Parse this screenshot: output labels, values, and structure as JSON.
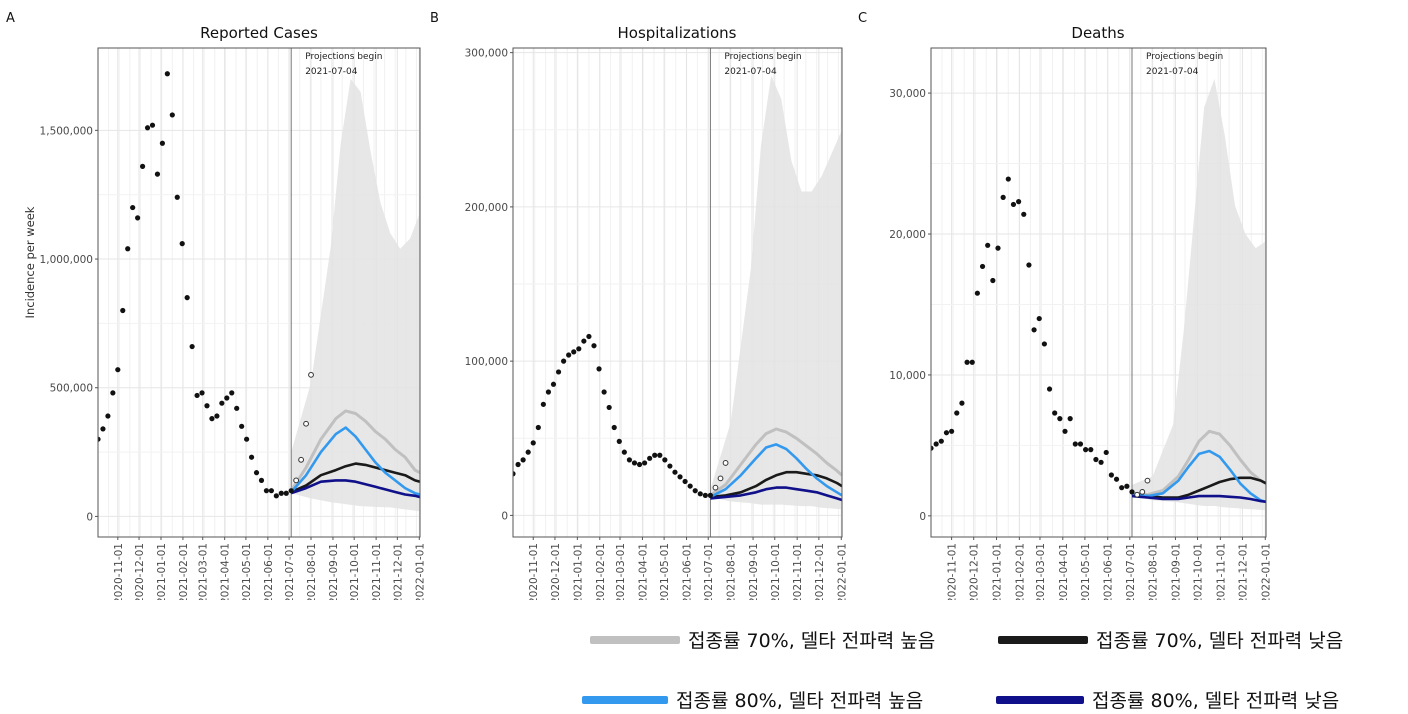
{
  "panels": [
    {
      "letter": "A",
      "title": "Reported Cases",
      "ylabel": "Incidence per week",
      "yticks": [
        0,
        500000,
        1000000,
        1500000
      ],
      "ytick_labels": [
        "0",
        "500,000",
        "1,000,000",
        "1,500,000"
      ],
      "ylim": [
        -80000,
        1820000
      ],
      "annotation": [
        "Projections begin",
        "2021-07-04"
      ]
    },
    {
      "letter": "B",
      "title": "Hospitalizations",
      "ylabel": "",
      "yticks": [
        0,
        100000,
        200000,
        300000
      ],
      "ytick_labels": [
        "0",
        "100,000",
        "200,000",
        "300,000"
      ],
      "ylim": [
        -14000,
        303000
      ],
      "annotation": [
        "Projections begin",
        "2021-07-04"
      ]
    },
    {
      "letter": "C",
      "title": "Deaths",
      "ylabel": "",
      "yticks": [
        0,
        10000,
        20000,
        30000
      ],
      "ytick_labels": [
        "0",
        "10,000",
        "20,000",
        "30,000"
      ],
      "ylim": [
        -1500,
        33200
      ],
      "annotation": [
        "Projections begin",
        "2021-07-04"
      ]
    }
  ],
  "x_tick_labels": [
    "2020-11-01",
    "2020-12-01",
    "2021-01-01",
    "2021-02-01",
    "2021-03-01",
    "2021-04-01",
    "2021-05-01",
    "2021-06-01",
    "2021-07-01",
    "2021-08-01",
    "2021-09-01",
    "2021-10-01",
    "2021-11-01",
    "2021-12-01",
    "2022-01-01"
  ],
  "legend": [
    {
      "label": "접종률 70%, 델타 전파력 높음",
      "color": "#c0c0c0"
    },
    {
      "label": "접종률 70%, 델타 전파력 낮음",
      "color": "#1a1a1a"
    },
    {
      "label": "접종률 80%, 델타 전파력 높음",
      "color": "#3399ee"
    },
    {
      "label": "접종률 80%, 델타 전파력 낮음",
      "color": "#10108a"
    }
  ],
  "chart_data": [
    {
      "type": "scatter",
      "title": "Reported Cases",
      "ylabel": "Incidence per week",
      "x_range": [
        "2020-10-04",
        "2022-01-02"
      ],
      "ylim": [
        -80000,
        1820000
      ],
      "projection_start": "2021-07-04",
      "observed": {
        "x": [
          "2020-10-04",
          "2020-10-11",
          "2020-10-18",
          "2020-10-25",
          "2020-11-01",
          "2020-11-08",
          "2020-11-15",
          "2020-11-22",
          "2020-11-29",
          "2020-12-06",
          "2020-12-13",
          "2020-12-20",
          "2020-12-27",
          "2021-01-03",
          "2021-01-10",
          "2021-01-17",
          "2021-01-24",
          "2021-01-31",
          "2021-02-07",
          "2021-02-14",
          "2021-02-21",
          "2021-02-28",
          "2021-03-07",
          "2021-03-14",
          "2021-03-21",
          "2021-03-28",
          "2021-04-04",
          "2021-04-11",
          "2021-04-18",
          "2021-04-25",
          "2021-05-02",
          "2021-05-09",
          "2021-05-16",
          "2021-05-23",
          "2021-05-30",
          "2021-06-06",
          "2021-06-13",
          "2021-06-20",
          "2021-06-27",
          "2021-07-04"
        ],
        "y": [
          300000,
          340000,
          390000,
          480000,
          570000,
          800000,
          1040000,
          1200000,
          1160000,
          1360000,
          1510000,
          1520000,
          1330000,
          1450000,
          1720000,
          1560000,
          1240000,
          1060000,
          850000,
          660000,
          470000,
          480000,
          430000,
          380000,
          390000,
          440000,
          460000,
          480000,
          420000,
          350000,
          300000,
          230000,
          170000,
          140000,
          100000,
          100000,
          80000,
          90000,
          90000,
          100000
        ]
      },
      "post_projection_reported": {
        "x": [
          "2021-07-11",
          "2021-07-18",
          "2021-07-25",
          "2021-08-01"
        ],
        "y": [
          140000,
          220000,
          360000,
          550000
        ]
      },
      "interval_x": [
        "2021-07-04",
        "2021-08-01",
        "2021-08-29",
        "2021-09-12",
        "2021-09-26",
        "2021-10-10",
        "2021-10-24",
        "2021-11-07",
        "2021-11-21",
        "2021-12-05",
        "2021-12-19",
        "2022-01-02"
      ],
      "interval_upper": [
        250000,
        520000,
        1050000,
        1450000,
        1700000,
        1650000,
        1420000,
        1220000,
        1100000,
        1040000,
        1080000,
        1180000
      ],
      "interval_lower": [
        90000,
        70000,
        55000,
        50000,
        45000,
        40000,
        38000,
        36000,
        35000,
        30000,
        25000,
        20000
      ],
      "projection_x": [
        "2021-07-04",
        "2021-07-25",
        "2021-08-15",
        "2021-09-05",
        "2021-09-19",
        "2021-10-03",
        "2021-10-17",
        "2021-10-31",
        "2021-11-14",
        "2021-11-28",
        "2021-12-12",
        "2021-12-26",
        "2022-01-02"
      ],
      "series": [
        {
          "name": "접종률 70%, 델타 전파력 높음",
          "values": [
            100000,
            190000,
            300000,
            380000,
            410000,
            400000,
            370000,
            330000,
            300000,
            260000,
            230000,
            180000,
            170000
          ]
        },
        {
          "name": "접종률 70%, 델타 전파력 낮음",
          "values": [
            95000,
            120000,
            160000,
            180000,
            195000,
            205000,
            200000,
            190000,
            180000,
            170000,
            160000,
            140000,
            135000
          ]
        },
        {
          "name": "접종률 80%, 델타 전파력 높음",
          "values": [
            95000,
            160000,
            250000,
            320000,
            345000,
            310000,
            260000,
            210000,
            170000,
            140000,
            110000,
            90000,
            85000
          ]
        },
        {
          "name": "접종률 80%, 델타 전파력 낮음",
          "values": [
            90000,
            110000,
            135000,
            140000,
            140000,
            135000,
            125000,
            115000,
            105000,
            95000,
            85000,
            80000,
            75000
          ]
        }
      ]
    },
    {
      "type": "scatter",
      "title": "Hospitalizations",
      "x_range": [
        "2020-10-04",
        "2022-01-02"
      ],
      "ylim": [
        -14000,
        303000
      ],
      "projection_start": "2021-07-04",
      "observed": {
        "x": [
          "2020-10-04",
          "2020-10-11",
          "2020-10-18",
          "2020-10-25",
          "2020-11-01",
          "2020-11-08",
          "2020-11-15",
          "2020-11-22",
          "2020-11-29",
          "2020-12-06",
          "2020-12-13",
          "2020-12-20",
          "2020-12-27",
          "2021-01-03",
          "2021-01-10",
          "2021-01-17",
          "2021-01-24",
          "2021-01-31",
          "2021-02-07",
          "2021-02-14",
          "2021-02-21",
          "2021-02-28",
          "2021-03-07",
          "2021-03-14",
          "2021-03-21",
          "2021-03-28",
          "2021-04-04",
          "2021-04-11",
          "2021-04-18",
          "2021-04-25",
          "2021-05-02",
          "2021-05-09",
          "2021-05-16",
          "2021-05-23",
          "2021-05-30",
          "2021-06-06",
          "2021-06-13",
          "2021-06-20",
          "2021-06-27",
          "2021-07-04"
        ],
        "y": [
          27000,
          33000,
          36000,
          41000,
          47000,
          57000,
          72000,
          80000,
          85000,
          93000,
          100000,
          104000,
          106000,
          108000,
          113000,
          116000,
          110000,
          95000,
          80000,
          70000,
          57000,
          48000,
          41000,
          36000,
          34000,
          33000,
          34000,
          37000,
          39000,
          39000,
          36000,
          32000,
          28000,
          25000,
          22000,
          19000,
          16000,
          14000,
          13000,
          13000
        ]
      },
      "post_projection_reported": {
        "x": [
          "2021-07-11",
          "2021-07-18",
          "2021-07-25"
        ],
        "y": [
          18000,
          24000,
          34000
        ]
      },
      "interval_x": [
        "2021-07-04",
        "2021-08-01",
        "2021-08-29",
        "2021-09-12",
        "2021-09-26",
        "2021-10-10",
        "2021-10-24",
        "2021-11-07",
        "2021-11-21",
        "2021-12-05",
        "2021-12-19",
        "2022-01-02"
      ],
      "interval_upper": [
        17000,
        60000,
        160000,
        240000,
        285000,
        270000,
        230000,
        210000,
        210000,
        220000,
        235000,
        250000
      ],
      "interval_lower": [
        12000,
        9000,
        8000,
        7000,
        7000,
        7000,
        6500,
        6000,
        6000,
        5000,
        4500,
        4000
      ],
      "projection_x": [
        "2021-07-04",
        "2021-07-25",
        "2021-08-15",
        "2021-09-05",
        "2021-09-19",
        "2021-10-03",
        "2021-10-17",
        "2021-10-31",
        "2021-11-14",
        "2021-11-28",
        "2021-12-12",
        "2021-12-26",
        "2022-01-02"
      ],
      "series": [
        {
          "name": "접종률 70%, 델타 전파력 높음",
          "values": [
            13000,
            20000,
            33000,
            46000,
            53000,
            56000,
            54000,
            50000,
            45000,
            40000,
            34000,
            29000,
            26000
          ]
        },
        {
          "name": "접종률 70%, 델타 전파력 낮음",
          "values": [
            12000,
            13000,
            15000,
            19000,
            23000,
            26000,
            28000,
            28000,
            27000,
            26000,
            24000,
            21000,
            19000
          ]
        },
        {
          "name": "접종률 80%, 델타 전파력 높음",
          "values": [
            12000,
            17000,
            26000,
            37000,
            44000,
            46000,
            43000,
            37000,
            30000,
            24000,
            19000,
            15000,
            13000
          ]
        },
        {
          "name": "접종률 80%, 델타 전파력 낮음",
          "values": [
            11000,
            12000,
            13000,
            15000,
            17000,
            18000,
            18000,
            17000,
            16000,
            15000,
            13000,
            11000,
            10000
          ]
        }
      ]
    },
    {
      "type": "scatter",
      "title": "Deaths",
      "x_range": [
        "2020-10-04",
        "2022-01-02"
      ],
      "ylim": [
        -1500,
        33200
      ],
      "projection_start": "2021-07-04",
      "observed": {
        "x": [
          "2020-10-04",
          "2020-10-11",
          "2020-10-18",
          "2020-10-25",
          "2020-11-01",
          "2020-11-08",
          "2020-11-15",
          "2020-11-22",
          "2020-11-29",
          "2020-12-06",
          "2020-12-13",
          "2020-12-20",
          "2020-12-27",
          "2021-01-03",
          "2021-01-10",
          "2021-01-17",
          "2021-01-24",
          "2021-01-31",
          "2021-02-07",
          "2021-02-14",
          "2021-02-21",
          "2021-02-28",
          "2021-03-07",
          "2021-03-14",
          "2021-03-21",
          "2021-03-28",
          "2021-04-04",
          "2021-04-11",
          "2021-04-18",
          "2021-04-25",
          "2021-05-02",
          "2021-05-09",
          "2021-05-16",
          "2021-05-23",
          "2021-05-30",
          "2021-06-06",
          "2021-06-13",
          "2021-06-20",
          "2021-06-27",
          "2021-07-04"
        ],
        "y": [
          4800,
          5100,
          5300,
          5900,
          6000,
          7300,
          8000,
          10900,
          10900,
          15800,
          17700,
          19200,
          16700,
          19000,
          22600,
          23900,
          22100,
          22300,
          21400,
          17800,
          13200,
          14000,
          12200,
          9000,
          7300,
          6900,
          6000,
          6900,
          5100,
          5100,
          4700,
          4700,
          4000,
          3800,
          4500,
          2900,
          2600,
          2000,
          2100,
          1700
        ]
      },
      "post_projection_reported": {
        "x": [
          "2021-07-11",
          "2021-07-18",
          "2021-07-25"
        ],
        "y": [
          1500,
          1700,
          2500
        ]
      },
      "interval_x": [
        "2021-07-04",
        "2021-08-01",
        "2021-08-29",
        "2021-09-12",
        "2021-09-26",
        "2021-10-10",
        "2021-10-24",
        "2021-11-07",
        "2021-11-21",
        "2021-12-05",
        "2021-12-19",
        "2022-01-02"
      ],
      "interval_upper": [
        2200,
        2800,
        6500,
        13000,
        21000,
        29000,
        31000,
        27000,
        22000,
        20000,
        19000,
        19500
      ],
      "interval_lower": [
        1400,
        1100,
        1000,
        900,
        800,
        700,
        700,
        600,
        550,
        500,
        450,
        400
      ],
      "projection_x": [
        "2021-07-04",
        "2021-07-25",
        "2021-08-15",
        "2021-09-05",
        "2021-09-19",
        "2021-10-03",
        "2021-10-17",
        "2021-10-31",
        "2021-11-14",
        "2021-11-28",
        "2021-12-12",
        "2021-12-26",
        "2022-01-02"
      ],
      "series": [
        {
          "name": "접종률 70%, 델타 전파력 높음",
          "values": [
            1600,
            1500,
            1800,
            2800,
            4000,
            5300,
            6000,
            5800,
            5000,
            4000,
            3100,
            2500,
            2300
          ]
        },
        {
          "name": "접종률 70%, 델타 전파력 낮음",
          "values": [
            1500,
            1400,
            1300,
            1300,
            1500,
            1800,
            2100,
            2400,
            2600,
            2700,
            2700,
            2500,
            2300
          ]
        },
        {
          "name": "접종률 80%, 델타 전파력 높음",
          "values": [
            1500,
            1400,
            1600,
            2500,
            3500,
            4400,
            4600,
            4200,
            3300,
            2300,
            1600,
            1100,
            1000
          ]
        },
        {
          "name": "접종률 80%, 델타 전파력 낮음",
          "values": [
            1400,
            1300,
            1200,
            1200,
            1300,
            1400,
            1400,
            1400,
            1350,
            1300,
            1200,
            1050,
            1000
          ]
        }
      ]
    }
  ]
}
